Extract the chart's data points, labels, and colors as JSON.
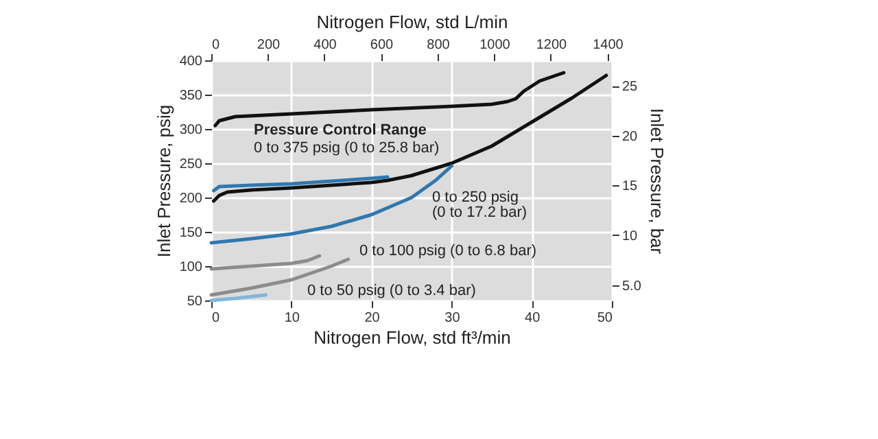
{
  "chart_data": {
    "type": "line",
    "xlabel": "Nitrogen Flow, std ft³/min",
    "ylabel": "Inlet Pressure, psig",
    "y2label": "Inlet Pressure, bar",
    "x2label": "Nitrogen Flow, std L/min",
    "xlim": [
      0,
      50
    ],
    "xticks": [
      0,
      10,
      20,
      30,
      40,
      50
    ],
    "ylim": [
      50,
      400
    ],
    "yticks": [
      50,
      100,
      150,
      200,
      250,
      300,
      350,
      400
    ],
    "y2lim": [
      3.45,
      27.58
    ],
    "y2ticks": [
      {
        "value": 5,
        "label": "5.0"
      },
      10,
      15,
      20,
      25
    ],
    "x2lim": [
      0,
      1416
    ],
    "x2ticks": [
      0,
      200,
      400,
      600,
      800,
      {
        "value": 1000,
        "label": "1000"
      },
      {
        "value": 1200,
        "label": "1200"
      },
      {
        "value": 1400,
        "label": "1400"
      }
    ],
    "grid": true,
    "line_style": "solid",
    "marker": "none",
    "series": [
      {
        "color": "#111111",
        "x": [
          0.5,
          1,
          3,
          10,
          20,
          30,
          35,
          37,
          38,
          39,
          41,
          43,
          44
        ],
        "values": [
          305,
          312,
          318,
          322,
          328,
          333,
          336,
          340,
          344,
          355,
          370,
          378,
          382
        ]
      },
      {
        "color": "#111111",
        "x": [
          0.3,
          1,
          2,
          5,
          10,
          20,
          22,
          25,
          30,
          35,
          40,
          45,
          49.3
        ],
        "values": [
          195,
          203,
          208,
          211,
          214,
          222,
          225,
          232,
          250,
          275,
          310,
          345,
          378
        ]
      },
      {
        "color": "#2f78b0",
        "x": [
          0.3,
          1,
          5,
          10,
          20,
          22
        ],
        "values": [
          210,
          216,
          218,
          220,
          228,
          230
        ]
      },
      {
        "color": "#2f78b0",
        "x": [
          0,
          5,
          10,
          15,
          20,
          25,
          28,
          30
        ],
        "values": [
          134,
          140,
          147,
          158,
          175,
          200,
          225,
          246
        ]
      },
      {
        "color": "#8c8c8c",
        "x": [
          0,
          5,
          10,
          12,
          13.5
        ],
        "values": [
          96,
          100,
          104,
          108,
          115
        ]
      },
      {
        "color": "#8c8c8c",
        "x": [
          0,
          5,
          10,
          15,
          17.1
        ],
        "values": [
          58,
          68,
          80,
          100,
          110
        ]
      },
      {
        "color": "#7fb6dc",
        "x": [
          0,
          3,
          6.8
        ],
        "values": [
          50,
          53,
          58
        ]
      }
    ],
    "annotations": [
      "Pressure Control Range",
      "0 to 375 psig (0 to 25.8 bar)",
      "0 to 250 psig",
      "(0 to 17.2 bar)",
      "0 to 100 psig (0 to 6.8 bar)",
      "0 to 50 psig (0 to 3.4 bar)"
    ]
  }
}
